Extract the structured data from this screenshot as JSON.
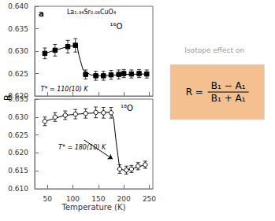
{
  "chart_data": [
    {
      "type": "scatter",
      "panel_label": "a",
      "title": "La₁.₉₄Sr₀.₀₆CuO₄",
      "ylabel": "R",
      "xlim": [
        25,
        257
      ],
      "xticks": [
        50,
        100,
        150,
        200,
        250
      ],
      "ylim": [
        0.62,
        0.64
      ],
      "yticks": [
        {
          "value": 0.62,
          "label": "0.620"
        },
        0.625,
        {
          "value": 0.63,
          "label": "0.630"
        },
        0.635,
        {
          "value": 0.64,
          "label": "0.640"
        }
      ],
      "tick_labels": "y",
      "grid": false,
      "series": [
        {
          "type": "line",
          "color": "#000000",
          "line_style": "solid",
          "x": [
            45,
            65,
            90,
            105,
            108,
            112,
            120,
            135,
            145,
            160,
            200,
            245
          ],
          "values": [
            0.6295,
            0.6302,
            0.631,
            0.6313,
            0.6313,
            0.629,
            0.6258,
            0.6247,
            0.6245,
            0.6245,
            0.6248,
            0.6249
          ]
        },
        {
          "type": "scatter",
          "color": "#000000",
          "marker": "filled-square",
          "x": [
            45,
            65,
            90,
            105,
            125,
            145,
            160,
            175,
            190,
            200,
            215,
            230,
            245
          ],
          "values": [
            0.6295,
            0.6302,
            0.631,
            0.6313,
            0.6248,
            0.6245,
            0.6245,
            0.6247,
            0.6248,
            0.625,
            0.6249,
            0.625,
            0.6249
          ],
          "yerr": [
            0.0012,
            0.0013,
            0.0014,
            0.0015,
            0.001,
            0.001,
            0.001,
            0.001,
            0.001,
            0.0009,
            0.0009,
            0.0009,
            0.0009
          ]
        }
      ],
      "annotations": [
        {
          "text": "¹⁶O"
        },
        {
          "text": "T* = 110(10) K"
        }
      ],
      "note": {
        "text": "Isotope effect on",
        "color": "#999999"
      },
      "formula": {
        "text": "R =",
        "numerator": "B₁ − A₁",
        "denominator": "B₁ + A₁",
        "color": "#f5c090"
      }
    },
    {
      "type": "scatter",
      "xlabel": "Temperature (K)",
      "xlim": [
        25,
        257
      ],
      "xticks": [
        50,
        100,
        150,
        200,
        250
      ],
      "ylim": [
        0.61,
        0.635
      ],
      "yticks": [
        {
          "value": 0.61,
          "label": "0.610"
        },
        0.615,
        {
          "value": 0.62,
          "label": "0.620"
        },
        0.625,
        {
          "value": 0.63,
          "label": "0.630"
        },
        0.635
      ],
      "grid": false,
      "series": [
        {
          "type": "line",
          "color": "#000000",
          "line_style": "solid",
          "x": [
            45,
            85,
            125,
            165,
            175,
            180,
            185,
            192,
            200,
            215,
            242
          ],
          "values": [
            0.6288,
            0.6305,
            0.631,
            0.6313,
            0.6313,
            0.6295,
            0.623,
            0.6155,
            0.6152,
            0.6155,
            0.6167
          ]
        },
        {
          "type": "scatter",
          "color": "#000000",
          "marker": "open-circle",
          "x": [
            45,
            65,
            85,
            105,
            125,
            145,
            160,
            175,
            192,
            205,
            215,
            228,
            242
          ],
          "values": [
            0.6288,
            0.63,
            0.6305,
            0.6308,
            0.631,
            0.6313,
            0.6312,
            0.6312,
            0.6155,
            0.6152,
            0.6155,
            0.6163,
            0.6167
          ],
          "yerr": [
            0.0012,
            0.0012,
            0.0012,
            0.0013,
            0.0013,
            0.0015,
            0.0015,
            0.0015,
            0.0012,
            0.0011,
            0.001,
            0.001,
            0.001
          ]
        }
      ],
      "annotations": [
        {
          "text": "¹⁸O"
        },
        {
          "text": "T* = 180(10) K"
        }
      ],
      "arrow": {
        "from": [
          122,
          0.6236
        ],
        "to": [
          178,
          0.6183
        ]
      }
    }
  ]
}
